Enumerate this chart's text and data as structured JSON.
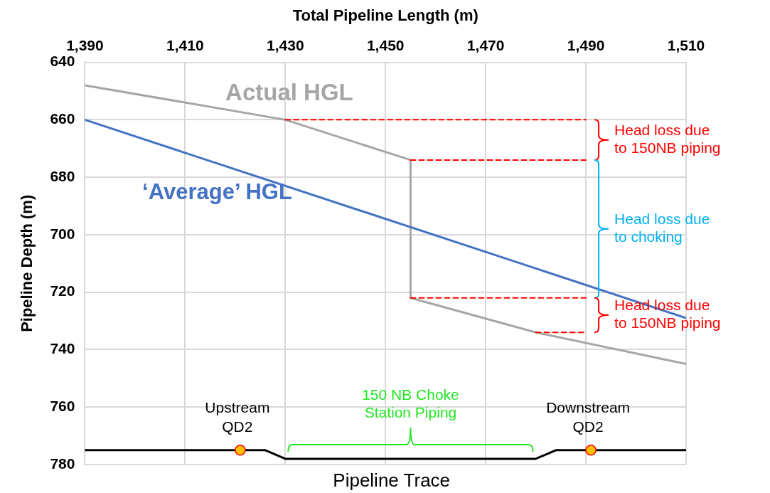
{
  "chart_data": {
    "type": "line",
    "xlabel": "Total Pipeline Length (m)",
    "ylabel": "Pipeline Depth (m)",
    "xlim": [
      1390,
      1510
    ],
    "xticks": [
      {
        "value": 1390,
        "label": "1,390"
      },
      {
        "value": 1410,
        "label": "1,410"
      },
      {
        "value": 1430,
        "label": "1,430"
      },
      {
        "value": 1450,
        "label": "1,450"
      },
      {
        "value": 1470,
        "label": "1,470"
      },
      {
        "value": 1490,
        "label": "1,490"
      },
      {
        "value": 1510,
        "label": "1,510"
      }
    ],
    "ylim": [
      780,
      640
    ],
    "yticks": [
      640,
      660,
      680,
      700,
      720,
      740,
      760,
      780
    ],
    "grid": true,
    "series": [
      {
        "name": "Actual HGL",
        "color": "#a6a6a6",
        "x": [
          1390,
          1430,
          1455,
          1455,
          1480,
          1510
        ],
        "values": [
          648,
          660,
          674,
          722,
          734,
          745
        ]
      },
      {
        "name": "‘Average’ HGL",
        "color": "#4472c4",
        "x": [
          1390,
          1510
        ],
        "values": [
          660,
          729
        ]
      },
      {
        "name": "Pipeline Trace",
        "color": "#000000",
        "x": [
          1390,
          1426,
          1430,
          1480,
          1484,
          1510
        ],
        "values": [
          775,
          775,
          778,
          778,
          775,
          775
        ]
      },
      {
        "color": "#ff0000",
        "line_style": "dashed",
        "x": [
          1430,
          1490
        ],
        "values": [
          660,
          660
        ]
      },
      {
        "color": "#ff0000",
        "line_style": "dashed",
        "x": [
          1455,
          1490
        ],
        "values": [
          674,
          674
        ]
      },
      {
        "color": "#ff0000",
        "line_style": "dashed",
        "x": [
          1455,
          1490
        ],
        "values": [
          722,
          722
        ]
      },
      {
        "color": "#ff0000",
        "line_style": "dashed",
        "x": [
          1480,
          1490
        ],
        "values": [
          734,
          734
        ]
      },
      {
        "type": "scatter",
        "marker": "circle",
        "color": "#ffc000",
        "x": [
          1421,
          1491
        ],
        "values": [
          775,
          775
        ]
      }
    ],
    "annotations": [
      "Head loss due\nto 150NB piping",
      "Head loss due\nto choking",
      "Head loss due\nto 150NB piping",
      "150 NB Choke\nStation Piping",
      {
        "text": "Upstream\nQD2",
        "x": 1421,
        "y": 775
      },
      {
        "text": "Downstream\nQD2",
        "x": 1491,
        "y": 775
      }
    ]
  }
}
